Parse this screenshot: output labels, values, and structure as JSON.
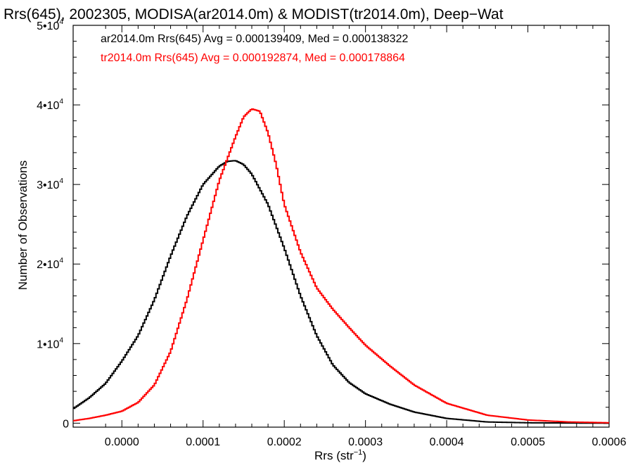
{
  "chart_data": {
    "type": "line",
    "title": "Rrs(645), 2002305, MODISA(ar2014.0m) & MODIST(tr2014.0m), Deep−Wat",
    "xlabel_main": "Rrs (str",
    "xlabel_sup": "−1",
    "xlabel_end": ")",
    "ylabel": "Number of Observations",
    "xlim": [
      -6e-05,
      0.0006
    ],
    "ylim": [
      -500,
      50000
    ],
    "x_ticks": [
      {
        "value": 0.0,
        "label": "0.0000"
      },
      {
        "value": 0.0001,
        "label": "0.0001"
      },
      {
        "value": 0.0002,
        "label": "0.0002"
      },
      {
        "value": 0.0003,
        "label": "0.0003"
      },
      {
        "value": 0.0004,
        "label": "0.0004"
      },
      {
        "value": 0.0005,
        "label": "0.0005"
      },
      {
        "value": 0.0006,
        "label": "0.0006"
      }
    ],
    "y_ticks": [
      {
        "value": 0,
        "label": "0",
        "exp": ""
      },
      {
        "value": 10000,
        "label": "1•10",
        "exp": "4"
      },
      {
        "value": 20000,
        "label": "2•10",
        "exp": "4"
      },
      {
        "value": 30000,
        "label": "3•10",
        "exp": "4"
      },
      {
        "value": 40000,
        "label": "4•10",
        "exp": "4"
      },
      {
        "value": 50000,
        "label": "5•10",
        "exp": "4"
      }
    ],
    "legend_position": "top-left",
    "series": [
      {
        "name": "ar2014.0m",
        "legend_label": "ar2014.0m Rrs(645) Avg = 0.000139409, Med = 0.000138322",
        "color": "#000000",
        "x": [
          -6e-05,
          -4e-05,
          -2e-05,
          0.0,
          2e-05,
          4e-05,
          6e-05,
          8e-05,
          0.0001,
          0.00012,
          0.00013,
          0.00014,
          0.00015,
          0.00016,
          0.00018,
          0.0002,
          0.00022,
          0.00024,
          0.00026,
          0.00028,
          0.0003,
          0.00033,
          0.00036,
          0.0004,
          0.00045,
          0.0005,
          0.00055,
          0.0006
        ],
        "y": [
          1800,
          3200,
          5000,
          7800,
          11000,
          15500,
          21000,
          26000,
          30000,
          32300,
          32900,
          33000,
          32500,
          31300,
          27500,
          22000,
          16000,
          11000,
          7300,
          5100,
          3700,
          2400,
          1400,
          600,
          150,
          50,
          20,
          0
        ]
      },
      {
        "name": "tr2014.0m",
        "legend_label": "tr2014.0m Rrs(645) Avg = 0.000192874, Med = 0.000178864",
        "color": "#ff0000",
        "x": [
          -6e-05,
          -4e-05,
          -2e-05,
          0.0,
          2e-05,
          4e-05,
          6e-05,
          8e-05,
          0.0001,
          0.00012,
          0.00014,
          0.00015,
          0.00016,
          0.00017,
          0.00018,
          0.00019,
          0.0002,
          0.00022,
          0.00024,
          0.00026,
          0.00028,
          0.0003,
          0.00033,
          0.00036,
          0.0004,
          0.00045,
          0.0005,
          0.00055,
          0.0006
        ],
        "y": [
          300,
          600,
          1000,
          1500,
          2600,
          4800,
          9000,
          15500,
          23000,
          30500,
          36000,
          38500,
          39500,
          39200,
          36500,
          32500,
          27500,
          21500,
          17000,
          14300,
          12000,
          9800,
          7200,
          4800,
          2500,
          1000,
          400,
          150,
          50
        ]
      }
    ]
  }
}
